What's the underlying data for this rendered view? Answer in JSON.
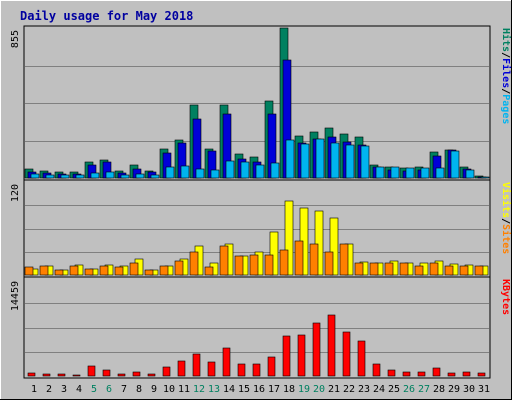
{
  "chart_data": {
    "type": "bar",
    "title": "Daily usage for May 2018",
    "categories": [
      "1",
      "2",
      "3",
      "4",
      "5",
      "6",
      "7",
      "8",
      "9",
      "10",
      "11",
      "12",
      "13",
      "14",
      "15",
      "16",
      "17",
      "18",
      "19",
      "20",
      "21",
      "22",
      "23",
      "24",
      "25",
      "26",
      "27",
      "28",
      "29",
      "30",
      "31"
    ],
    "weekend_days": [
      "5",
      "6",
      "12",
      "13",
      "19",
      "20",
      "26",
      "27"
    ],
    "panels": [
      {
        "id": "hits",
        "max_label": "855",
        "ylim": [
          0,
          855
        ],
        "labels": [
          {
            "text": "Pages",
            "color": "#00b4f0"
          },
          {
            "text": "/",
            "color": "#000000"
          },
          {
            "text": "Files",
            "color": "#0000d8"
          },
          {
            "text": "/",
            "color": "#000000"
          },
          {
            "text": "Hits",
            "color": "#008060"
          }
        ],
        "series": [
          {
            "name": "Hits",
            "color": "#008060",
            "values": [
              50,
              40,
              35,
              35,
              90,
              105,
              40,
              72,
              40,
              165,
              215,
              415,
              165,
              415,
              135,
              120,
              440,
              855,
              240,
              265,
              285,
              250,
              235,
              75,
              60,
              55,
              60,
              150,
              160,
              65,
              10
            ]
          },
          {
            "name": "Files",
            "color": "#0000d8",
            "values": [
              35,
              30,
              25,
              25,
              75,
              90,
              30,
              50,
              35,
              140,
              200,
              335,
              155,
              365,
              110,
              90,
              365,
              670,
              200,
              225,
              235,
              205,
              190,
              65,
              45,
              40,
              45,
              125,
              160,
              50,
              8
            ]
          },
          {
            "name": "Pages",
            "color": "#00b4f0",
            "values": [
              20,
              15,
              15,
              15,
              30,
              35,
              15,
              25,
              15,
              65,
              70,
              50,
              45,
              95,
              90,
              75,
              85,
              215,
              195,
              220,
              200,
              190,
              185,
              60,
              60,
              55,
              55,
              55,
              155,
              45,
              5
            ]
          }
        ]
      },
      {
        "id": "visits",
        "max_label": "120",
        "ylim": [
          0,
          120
        ],
        "labels": [
          {
            "text": "Sites",
            "color": "#ff8000"
          },
          {
            "text": "/",
            "color": "#000000"
          },
          {
            "text": "Visits",
            "color": "#ffff00"
          }
        ],
        "series": [
          {
            "name": "Visits",
            "color": "#ffff00",
            "values": [
              8,
              12,
              6,
              13,
              8,
              13,
              12,
              20,
              7,
              12,
              20,
              38,
              16,
              40,
              25,
              30,
              56,
              96,
              86,
              82,
              73,
              40,
              17,
              16,
              18,
              15,
              15,
              18,
              14,
              13,
              12
            ]
          },
          {
            "name": "Sites",
            "color": "#ff8000",
            "values": [
              10,
              11,
              6,
              11,
              8,
              12,
              10,
              16,
              7,
              11,
              18,
              30,
              10,
              38,
              25,
              26,
              26,
              32,
              44,
              40,
              30,
              40,
              16,
              15,
              15,
              15,
              12,
              15,
              12,
              12,
              11
            ]
          }
        ]
      },
      {
        "id": "kbytes",
        "max_label": "14459",
        "ylim": [
          0,
          14459
        ],
        "labels": [
          {
            "text": "KBytes",
            "color": "#ff0000"
          }
        ],
        "series": [
          {
            "name": "KBytes",
            "color": "#ff0000",
            "values": [
              480,
              300,
              350,
              120,
              1550,
              950,
              280,
              550,
              280,
              1350,
              2300,
              3300,
              2050,
              4200,
              1850,
              1750,
              2900,
              5950,
              6050,
              7850,
              9050,
              6500,
              5250,
              1800,
              900,
              550,
              600,
              1250,
              400,
              550,
              500
            ]
          }
        ]
      }
    ]
  }
}
